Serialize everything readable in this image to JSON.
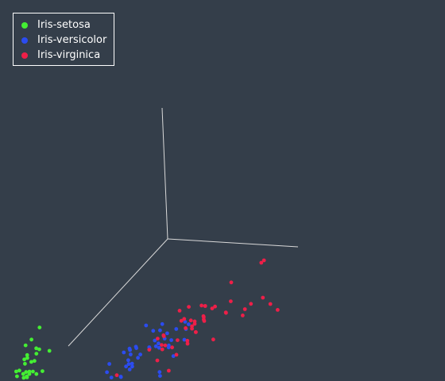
{
  "chart_data": {
    "type": "scatter",
    "projection": "3d",
    "title": "",
    "axes_labels": [],
    "background": "#343e4a",
    "axis_color": "#d9d9d9",
    "legend_placement": "top-left",
    "series": [
      {
        "name": "Iris-setosa",
        "color": "#44ee33",
        "points": [
          [
            5.1,
            3.5,
            1.4
          ],
          [
            4.9,
            3.0,
            1.4
          ],
          [
            4.7,
            3.2,
            1.3
          ],
          [
            4.6,
            3.1,
            1.5
          ],
          [
            5.0,
            3.6,
            1.4
          ],
          [
            5.4,
            3.9,
            1.7
          ],
          [
            4.6,
            3.4,
            1.4
          ],
          [
            5.0,
            3.4,
            1.5
          ],
          [
            4.4,
            2.9,
            1.4
          ],
          [
            4.9,
            3.1,
            1.5
          ],
          [
            5.4,
            3.7,
            1.5
          ],
          [
            4.8,
            3.4,
            1.6
          ],
          [
            4.8,
            3.0,
            1.4
          ],
          [
            4.3,
            3.0,
            1.1
          ],
          [
            5.8,
            4.0,
            1.2
          ],
          [
            5.7,
            4.4,
            1.5
          ],
          [
            5.4,
            3.9,
            1.3
          ],
          [
            5.1,
            3.5,
            1.4
          ],
          [
            5.7,
            3.8,
            1.7
          ],
          [
            5.1,
            3.8,
            1.5
          ],
          [
            5.4,
            3.4,
            1.7
          ],
          [
            5.1,
            3.7,
            1.5
          ],
          [
            4.6,
            3.6,
            1.0
          ],
          [
            5.1,
            3.3,
            1.7
          ],
          [
            4.8,
            3.4,
            1.9
          ],
          [
            5.0,
            3.0,
            1.6
          ],
          [
            5.0,
            3.4,
            1.6
          ],
          [
            5.2,
            3.5,
            1.5
          ],
          [
            5.2,
            3.4,
            1.4
          ],
          [
            4.7,
            3.2,
            1.6
          ],
          [
            4.8,
            3.1,
            1.6
          ],
          [
            5.4,
            3.4,
            1.5
          ],
          [
            5.2,
            4.1,
            1.5
          ],
          [
            5.5,
            4.2,
            1.4
          ],
          [
            4.9,
            3.1,
            1.5
          ],
          [
            5.0,
            3.2,
            1.2
          ],
          [
            5.5,
            3.5,
            1.3
          ],
          [
            4.9,
            3.6,
            1.4
          ],
          [
            4.4,
            3.0,
            1.3
          ],
          [
            5.1,
            3.4,
            1.5
          ],
          [
            5.0,
            3.5,
            1.3
          ],
          [
            4.5,
            2.3,
            1.3
          ],
          [
            4.4,
            3.2,
            1.3
          ],
          [
            5.0,
            3.5,
            1.6
          ],
          [
            5.1,
            3.8,
            1.9
          ],
          [
            4.8,
            3.0,
            1.4
          ],
          [
            5.1,
            3.8,
            1.6
          ],
          [
            4.6,
            3.2,
            1.4
          ],
          [
            5.3,
            3.7,
            1.5
          ],
          [
            5.0,
            3.3,
            1.4
          ]
        ]
      },
      {
        "name": "Iris-versicolor",
        "color": "#2b4cf0",
        "points": [
          [
            7.0,
            3.2,
            4.7
          ],
          [
            6.4,
            3.2,
            4.5
          ],
          [
            6.9,
            3.1,
            4.9
          ],
          [
            5.5,
            2.3,
            4.0
          ],
          [
            6.5,
            2.8,
            4.6
          ],
          [
            5.7,
            2.8,
            4.5
          ],
          [
            6.3,
            3.3,
            4.7
          ],
          [
            4.9,
            2.4,
            3.3
          ],
          [
            6.6,
            2.9,
            4.6
          ],
          [
            5.2,
            2.7,
            3.9
          ],
          [
            5.0,
            2.0,
            3.5
          ],
          [
            5.9,
            3.0,
            4.2
          ],
          [
            6.0,
            2.2,
            4.0
          ],
          [
            6.1,
            2.9,
            4.7
          ],
          [
            5.6,
            2.9,
            3.6
          ],
          [
            6.7,
            3.1,
            4.4
          ],
          [
            5.6,
            3.0,
            4.5
          ],
          [
            5.8,
            2.7,
            4.1
          ],
          [
            6.2,
            2.2,
            4.5
          ],
          [
            5.6,
            2.5,
            3.9
          ],
          [
            5.9,
            3.2,
            4.8
          ],
          [
            6.1,
            2.8,
            4.0
          ],
          [
            6.3,
            2.5,
            4.9
          ],
          [
            6.1,
            2.8,
            4.7
          ],
          [
            6.4,
            2.9,
            4.3
          ],
          [
            6.6,
            3.0,
            4.4
          ],
          [
            6.8,
            2.8,
            4.8
          ],
          [
            6.7,
            3.0,
            5.0
          ],
          [
            6.0,
            2.9,
            4.5
          ],
          [
            5.7,
            2.6,
            3.5
          ],
          [
            5.5,
            2.4,
            3.8
          ],
          [
            5.5,
            2.4,
            3.7
          ],
          [
            5.8,
            2.7,
            3.9
          ],
          [
            6.0,
            2.7,
            5.1
          ],
          [
            5.4,
            3.0,
            4.5
          ],
          [
            6.0,
            3.4,
            4.5
          ],
          [
            6.7,
            3.1,
            4.7
          ],
          [
            6.3,
            2.3,
            4.4
          ],
          [
            5.6,
            3.0,
            4.1
          ],
          [
            5.5,
            2.5,
            4.0
          ],
          [
            5.5,
            2.6,
            4.4
          ],
          [
            6.1,
            3.0,
            4.6
          ],
          [
            5.8,
            2.6,
            4.0
          ],
          [
            5.0,
            2.3,
            3.3
          ],
          [
            5.6,
            2.7,
            4.2
          ],
          [
            5.7,
            3.0,
            4.2
          ],
          [
            5.7,
            2.9,
            4.2
          ],
          [
            6.2,
            2.9,
            4.3
          ],
          [
            5.1,
            2.5,
            3.0
          ],
          [
            5.7,
            2.8,
            4.1
          ]
        ]
      },
      {
        "name": "Iris-virginica",
        "color": "#ee1f48",
        "points": [
          [
            6.3,
            3.3,
            6.0
          ],
          [
            5.8,
            2.7,
            5.1
          ],
          [
            7.1,
            3.0,
            5.9
          ],
          [
            6.3,
            2.9,
            5.6
          ],
          [
            6.5,
            3.0,
            5.8
          ],
          [
            7.6,
            3.0,
            6.6
          ],
          [
            4.9,
            2.5,
            4.5
          ],
          [
            7.3,
            2.9,
            6.3
          ],
          [
            6.7,
            2.5,
            5.8
          ],
          [
            7.2,
            3.6,
            6.1
          ],
          [
            6.5,
            3.2,
            5.1
          ],
          [
            6.4,
            2.7,
            5.3
          ],
          [
            6.8,
            3.0,
            5.5
          ],
          [
            5.7,
            2.5,
            5.0
          ],
          [
            5.8,
            2.8,
            5.1
          ],
          [
            6.4,
            3.2,
            5.3
          ],
          [
            6.5,
            3.0,
            5.5
          ],
          [
            7.7,
            3.8,
            6.7
          ],
          [
            7.7,
            2.6,
            6.9
          ],
          [
            6.0,
            2.2,
            5.0
          ],
          [
            6.9,
            3.2,
            5.7
          ],
          [
            5.6,
            2.8,
            4.9
          ],
          [
            7.7,
            2.8,
            6.7
          ],
          [
            6.3,
            2.7,
            4.9
          ],
          [
            6.7,
            3.3,
            5.7
          ],
          [
            7.2,
            3.2,
            6.0
          ],
          [
            6.2,
            2.8,
            4.8
          ],
          [
            6.1,
            3.0,
            4.9
          ],
          [
            6.4,
            2.8,
            5.6
          ],
          [
            7.2,
            3.0,
            5.8
          ],
          [
            7.4,
            2.8,
            6.1
          ],
          [
            7.9,
            3.8,
            6.4
          ],
          [
            6.4,
            2.8,
            5.6
          ],
          [
            6.3,
            2.8,
            5.1
          ],
          [
            6.1,
            2.6,
            5.6
          ],
          [
            7.7,
            3.0,
            6.1
          ],
          [
            6.3,
            3.4,
            5.6
          ],
          [
            6.4,
            3.1,
            5.5
          ],
          [
            6.0,
            3.0,
            4.8
          ],
          [
            6.9,
            3.1,
            5.4
          ],
          [
            6.7,
            3.1,
            5.6
          ],
          [
            6.9,
            3.1,
            5.1
          ],
          [
            5.8,
            2.7,
            5.1
          ],
          [
            6.8,
            3.2,
            5.9
          ],
          [
            6.7,
            3.3,
            5.7
          ],
          [
            6.7,
            3.0,
            5.2
          ],
          [
            6.3,
            2.5,
            5.0
          ],
          [
            6.5,
            3.0,
            5.2
          ],
          [
            6.2,
            3.4,
            5.4
          ],
          [
            5.9,
            3.0,
            5.1
          ]
        ]
      }
    ]
  }
}
